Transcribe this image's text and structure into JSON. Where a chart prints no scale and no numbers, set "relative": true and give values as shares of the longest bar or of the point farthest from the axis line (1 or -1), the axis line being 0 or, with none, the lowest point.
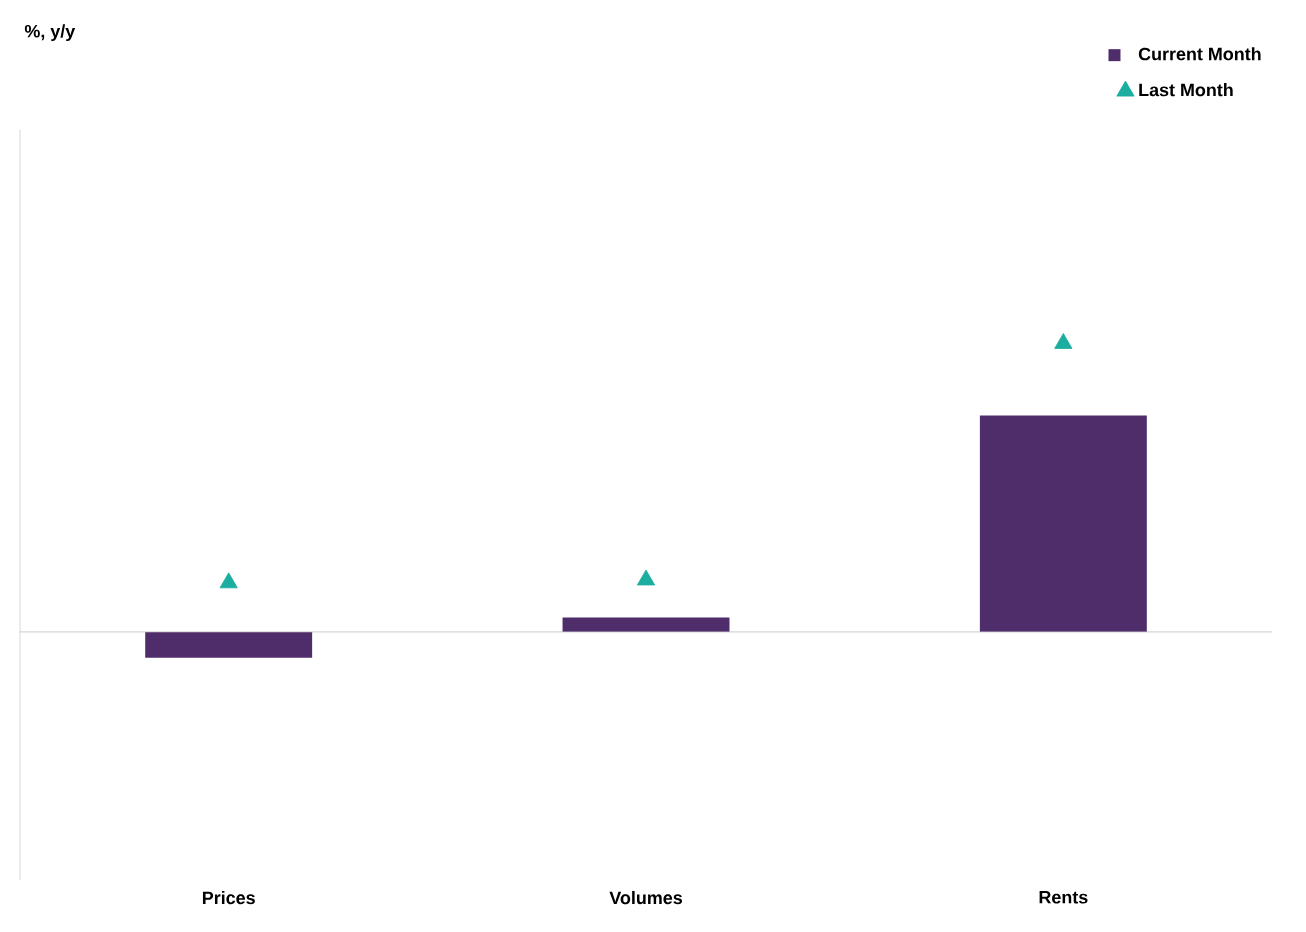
{
  "chart_data": {
    "type": "bar",
    "relative": true,
    "annotations": [
      "%, y/y"
    ],
    "categories": [
      "Prices",
      "Volumes",
      "Rents"
    ],
    "series": [
      {
        "name": "Current Month",
        "color": "#4f2d6b",
        "values": [
          -0.09,
          0.05,
          0.75
        ]
      },
      {
        "name": "Last Month",
        "type": "scatter",
        "marker": "triangle",
        "color": "#1aada0",
        "values": [
          0.17,
          0.18,
          1.0
        ]
      }
    ],
    "legend": "top right"
  }
}
